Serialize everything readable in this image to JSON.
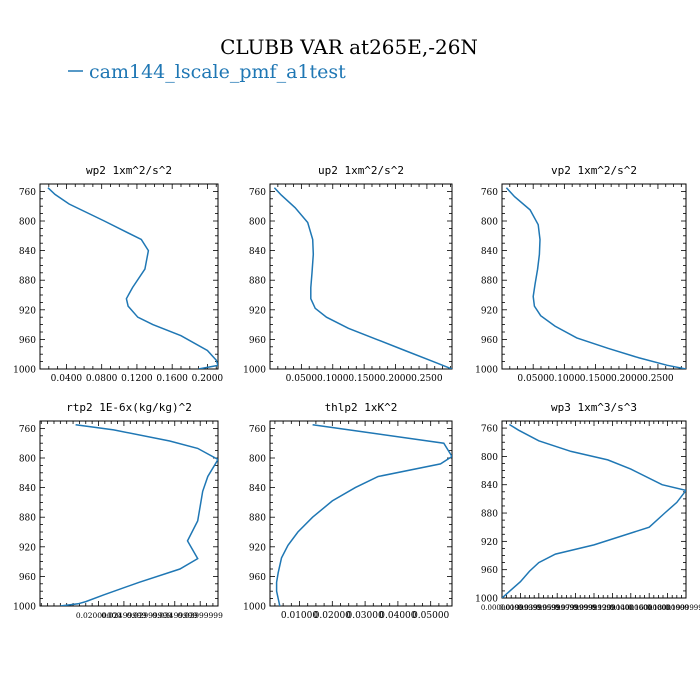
{
  "title": "CLUBB VAR at265E,-26N",
  "legend": {
    "label": "cam144_lscale_pmf_a1test",
    "color": "#1f77b4"
  },
  "chart_data": [
    {
      "type": "line",
      "title": "wp2 1xm^2/s^2",
      "ylim": [
        1000,
        750
      ],
      "yticks": [
        "760",
        "800",
        "840",
        "880",
        "920",
        "960",
        "1000"
      ],
      "xlim": [
        0.01,
        0.212
      ],
      "xticks": [
        0.04,
        0.08,
        0.12,
        0.16,
        0.2
      ],
      "xtick_labels": [
        "0.0400",
        "0.0800",
        "0.1200",
        "0.1600",
        "0.2000"
      ],
      "series": [
        {
          "x": [
            0.019,
            0.027,
            0.043,
            0.083,
            0.125,
            0.133,
            0.129,
            0.115,
            0.108,
            0.11,
            0.121,
            0.138,
            0.17,
            0.2,
            0.21,
            0.212,
            0.19
          ],
          "y": [
            755,
            764,
            777,
            800,
            825,
            840,
            865,
            890,
            905,
            915,
            930,
            940,
            955,
            975,
            988,
            995,
            1000
          ]
        }
      ]
    },
    {
      "type": "line",
      "title": "up2 1xm^2/s^2",
      "ylim": [
        1000,
        750
      ],
      "yticks": [
        "760",
        "800",
        "840",
        "880",
        "920",
        "960",
        "1000"
      ],
      "xlim": [
        0.0,
        0.29
      ],
      "xticks": [
        0.05,
        0.1,
        0.15,
        0.2,
        0.25
      ],
      "xtick_labels": [
        "0.0500",
        "0.1000",
        "0.1500",
        "0.2000",
        "0.2500"
      ],
      "series": [
        {
          "x": [
            0.007,
            0.018,
            0.04,
            0.06,
            0.068,
            0.069,
            0.067,
            0.065,
            0.065,
            0.072,
            0.09,
            0.125,
            0.17,
            0.215,
            0.26,
            0.29
          ],
          "y": [
            755,
            765,
            782,
            802,
            825,
            845,
            870,
            890,
            905,
            918,
            930,
            945,
            960,
            975,
            990,
            1000
          ]
        }
      ]
    },
    {
      "type": "line",
      "title": "vp2 1xm^2/s^2",
      "ylim": [
        1000,
        750
      ],
      "yticks": [
        "760",
        "800",
        "840",
        "880",
        "920",
        "960",
        "1000"
      ],
      "xlim": [
        0.0,
        0.295
      ],
      "xticks": [
        0.05,
        0.1,
        0.15,
        0.2,
        0.25
      ],
      "xtick_labels": [
        "0.0500",
        "0.1000",
        "0.1500",
        "0.2000",
        "0.2500"
      ],
      "series": [
        {
          "x": [
            0.007,
            0.02,
            0.045,
            0.058,
            0.061,
            0.06,
            0.057,
            0.053,
            0.05,
            0.052,
            0.062,
            0.085,
            0.12,
            0.17,
            0.22,
            0.265,
            0.295
          ],
          "y": [
            755,
            767,
            785,
            805,
            825,
            845,
            865,
            885,
            902,
            915,
            928,
            942,
            958,
            972,
            985,
            995,
            1000
          ]
        }
      ]
    },
    {
      "type": "line",
      "title": "rtp2 1E-6x(kg/kg)^2",
      "ylim": [
        1000,
        750
      ],
      "yticks": [
        "760",
        "800",
        "840",
        "880",
        "920",
        "960",
        "1000"
      ],
      "xlim": [
        0.0085,
        0.0435
      ],
      "xticks": [
        0.02,
        0.025,
        0.03,
        0.035,
        0.04
      ],
      "xtick_labels": [
        "0.02000000",
        "0.02499999",
        "0.02999999",
        "0.03499999",
        "0.03999999"
      ],
      "series": [
        {
          "x": [
            0.0155,
            0.023,
            0.034,
            0.0395,
            0.0435,
            0.0415,
            0.0405,
            0.04,
            0.0395,
            0.0375,
            0.0395,
            0.036,
            0.028,
            0.021,
            0.0175,
            0.016,
            0.0125
          ],
          "y": [
            755,
            762,
            777,
            787,
            802,
            825,
            845,
            865,
            885,
            912,
            936,
            950,
            968,
            985,
            994,
            997,
            1000
          ]
        }
      ]
    },
    {
      "type": "line",
      "title": "thlp2 1xK^2",
      "ylim": [
        1000,
        750
      ],
      "yticks": [
        "760",
        "800",
        "840",
        "880",
        "920",
        "960",
        "1000"
      ],
      "xlim": [
        0.001,
        0.0565
      ],
      "xticks": [
        0.01,
        0.02,
        0.03,
        0.04,
        0.05
      ],
      "xtick_labels": [
        "0.01000",
        "0.02000",
        "0.03000",
        "0.04000",
        "0.05000"
      ],
      "series": [
        {
          "x": [
            0.014,
            0.03,
            0.054,
            0.0565,
            0.053,
            0.034,
            0.027,
            0.02,
            0.014,
            0.0095,
            0.0065,
            0.0045,
            0.0035,
            0.003,
            0.003,
            0.0035,
            0.004
          ],
          "y": [
            755,
            765,
            780,
            798,
            808,
            825,
            840,
            858,
            880,
            900,
            918,
            935,
            955,
            968,
            980,
            990,
            1000
          ]
        }
      ]
    },
    {
      "type": "line",
      "title": "wp3 1xm^3/s^3",
      "ylim": [
        1000,
        750
      ],
      "yticks": [
        "760",
        "800",
        "840",
        "880",
        "920",
        "960",
        "1000"
      ],
      "xlim": [
        0.0,
        0.2
      ],
      "xticks": [
        0.0,
        0.02,
        0.04,
        0.06,
        0.08,
        0.1,
        0.12,
        0.14,
        0.16,
        0.18,
        0.2
      ],
      "xtick_labels": [
        "0.00000000",
        "0.01999999",
        "0.03999999",
        "0.05999999",
        "0.07999999",
        "0.09999999",
        "0.12000000",
        "0.14000000",
        "0.16000000",
        "0.18000000",
        "0.19999999"
      ],
      "series": [
        {
          "x": [
            0.008,
            0.018,
            0.04,
            0.075,
            0.115,
            0.14,
            0.174,
            0.2,
            0.19,
            0.177,
            0.16,
            0.1,
            0.058,
            0.04,
            0.03,
            0.02,
            0.0
          ],
          "y": [
            755,
            763,
            778,
            793,
            805,
            818,
            840,
            848,
            865,
            880,
            900,
            925,
            938,
            950,
            962,
            977,
            1000
          ]
        }
      ]
    }
  ]
}
